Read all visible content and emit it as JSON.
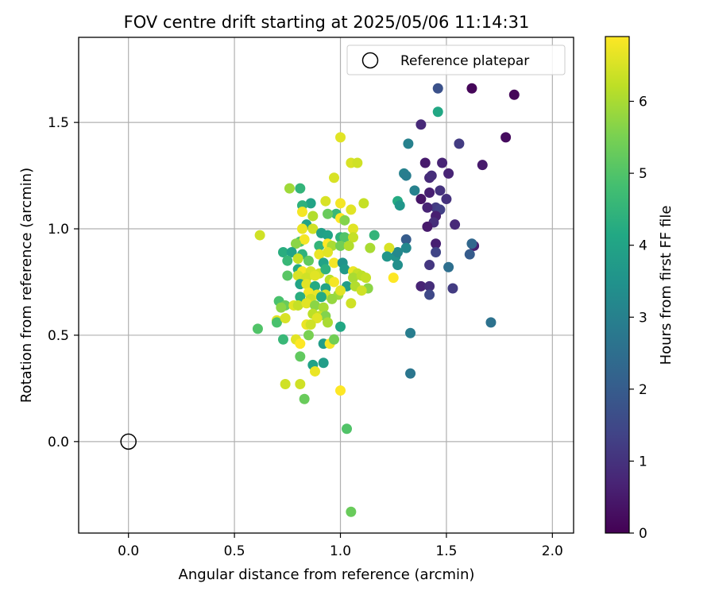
{
  "chart_data": {
    "type": "scatter",
    "title": "FOV centre drift starting at 2025/05/06 11:14:31",
    "xlabel": "Angular distance from reference (arcmin)",
    "ylabel": "Rotation from reference (arcmin)",
    "xlim": [
      -0.235,
      2.1
    ],
    "ylim": [
      -0.43,
      1.9
    ],
    "x_ticks": [
      0.0,
      0.5,
      1.0,
      1.5,
      2.0
    ],
    "x_tick_labels": [
      "0.0",
      "0.5",
      "1.0",
      "1.5",
      "2.0"
    ],
    "y_ticks": [
      0.0,
      0.5,
      1.0,
      1.5
    ],
    "y_tick_labels": [
      "0.0",
      "0.5",
      "1.0",
      "1.5"
    ],
    "grid": true,
    "legend": {
      "placement": "top-right",
      "entries": [
        "Reference platepar"
      ]
    },
    "colorbar": {
      "label": "Hours from first FF file",
      "colormap": "viridis",
      "range": [
        0,
        6.9
      ],
      "ticks": [
        0,
        1,
        2,
        3,
        4,
        5,
        6
      ],
      "tick_labels": [
        "0",
        "1",
        "2",
        "3",
        "4",
        "5",
        "6"
      ]
    },
    "reference_point": {
      "name": "Reference platepar",
      "x": 0.0,
      "y": 0.0
    },
    "series": [
      {
        "color_by": "hours",
        "points": [
          {
            "x": 1.62,
            "y": 1.66,
            "c": 0.1
          },
          {
            "x": 1.82,
            "y": 1.63,
            "c": 0.1
          },
          {
            "x": 1.78,
            "y": 1.43,
            "c": 0.2
          },
          {
            "x": 1.67,
            "y": 1.3,
            "c": 0.5
          },
          {
            "x": 1.48,
            "y": 1.31,
            "c": 0.7
          },
          {
            "x": 1.4,
            "y": 1.31,
            "c": 0.5
          },
          {
            "x": 1.51,
            "y": 1.26,
            "c": 0.7
          },
          {
            "x": 1.42,
            "y": 1.24,
            "c": 0.8
          },
          {
            "x": 1.43,
            "y": 1.25,
            "c": 0.9
          },
          {
            "x": 1.38,
            "y": 1.49,
            "c": 0.8
          },
          {
            "x": 1.56,
            "y": 1.4,
            "c": 1.2
          },
          {
            "x": 1.46,
            "y": 1.66,
            "c": 1.7
          },
          {
            "x": 1.42,
            "y": 1.17,
            "c": 0.6
          },
          {
            "x": 1.47,
            "y": 1.18,
            "c": 1.0
          },
          {
            "x": 1.38,
            "y": 1.14,
            "c": 0.4
          },
          {
            "x": 1.5,
            "y": 1.14,
            "c": 1.0
          },
          {
            "x": 1.45,
            "y": 1.1,
            "c": 1.2
          },
          {
            "x": 1.41,
            "y": 1.1,
            "c": 0.7
          },
          {
            "x": 1.47,
            "y": 1.09,
            "c": 1.3
          },
          {
            "x": 1.45,
            "y": 1.06,
            "c": 0.6
          },
          {
            "x": 1.44,
            "y": 1.03,
            "c": 0.9
          },
          {
            "x": 1.41,
            "y": 1.01,
            "c": 0.5
          },
          {
            "x": 1.54,
            "y": 1.02,
            "c": 0.8
          },
          {
            "x": 1.45,
            "y": 0.93,
            "c": 0.6
          },
          {
            "x": 1.45,
            "y": 0.89,
            "c": 1.4
          },
          {
            "x": 1.42,
            "y": 0.83,
            "c": 1.1
          },
          {
            "x": 1.63,
            "y": 0.92,
            "c": 0.6
          },
          {
            "x": 1.62,
            "y": 0.93,
            "c": 2.3
          },
          {
            "x": 1.61,
            "y": 0.88,
            "c": 2.0
          },
          {
            "x": 1.51,
            "y": 0.82,
            "c": 2.5
          },
          {
            "x": 1.38,
            "y": 0.73,
            "c": 0.7
          },
          {
            "x": 1.42,
            "y": 0.73,
            "c": 0.9
          },
          {
            "x": 1.42,
            "y": 0.69,
            "c": 1.5
          },
          {
            "x": 1.53,
            "y": 0.72,
            "c": 1.2
          },
          {
            "x": 1.71,
            "y": 0.56,
            "c": 2.6
          },
          {
            "x": 1.46,
            "y": 1.55,
            "c": 4.1
          },
          {
            "x": 1.32,
            "y": 1.4,
            "c": 3.0
          },
          {
            "x": 1.3,
            "y": 1.26,
            "c": 3.0
          },
          {
            "x": 1.31,
            "y": 1.25,
            "c": 2.9
          },
          {
            "x": 1.35,
            "y": 1.18,
            "c": 3.0
          },
          {
            "x": 1.27,
            "y": 1.13,
            "c": 4.2
          },
          {
            "x": 1.28,
            "y": 1.11,
            "c": 3.6
          },
          {
            "x": 1.31,
            "y": 0.95,
            "c": 2.0
          },
          {
            "x": 1.26,
            "y": 0.87,
            "c": 3.5
          },
          {
            "x": 1.27,
            "y": 0.89,
            "c": 3.2
          },
          {
            "x": 1.31,
            "y": 0.91,
            "c": 3.2
          },
          {
            "x": 1.27,
            "y": 0.83,
            "c": 3.4
          },
          {
            "x": 1.33,
            "y": 0.51,
            "c": 2.9
          },
          {
            "x": 1.33,
            "y": 0.32,
            "c": 2.7
          },
          {
            "x": 1.0,
            "y": 1.43,
            "c": 6.6
          },
          {
            "x": 1.05,
            "y": 1.31,
            "c": 6.5
          },
          {
            "x": 1.08,
            "y": 1.31,
            "c": 6.4
          },
          {
            "x": 0.97,
            "y": 1.24,
            "c": 6.5
          },
          {
            "x": 0.76,
            "y": 1.19,
            "c": 5.9
          },
          {
            "x": 0.81,
            "y": 1.19,
            "c": 4.5
          },
          {
            "x": 0.86,
            "y": 1.12,
            "c": 4.0
          },
          {
            "x": 0.82,
            "y": 1.11,
            "c": 4.4
          },
          {
            "x": 0.93,
            "y": 1.13,
            "c": 6.5
          },
          {
            "x": 1.0,
            "y": 1.12,
            "c": 6.8
          },
          {
            "x": 1.11,
            "y": 1.12,
            "c": 6.3
          },
          {
            "x": 1.05,
            "y": 1.09,
            "c": 6.6
          },
          {
            "x": 0.98,
            "y": 1.07,
            "c": 4.6
          },
          {
            "x": 0.94,
            "y": 1.07,
            "c": 5.3
          },
          {
            "x": 0.82,
            "y": 1.08,
            "c": 6.8
          },
          {
            "x": 0.87,
            "y": 1.06,
            "c": 6.1
          },
          {
            "x": 1.0,
            "y": 1.05,
            "c": 6.9
          },
          {
            "x": 1.02,
            "y": 1.04,
            "c": 5.6
          },
          {
            "x": 0.84,
            "y": 1.02,
            "c": 4.0
          },
          {
            "x": 0.82,
            "y": 1.0,
            "c": 6.7
          },
          {
            "x": 0.87,
            "y": 1.0,
            "c": 6.4
          },
          {
            "x": 1.06,
            "y": 1.0,
            "c": 6.6
          },
          {
            "x": 0.91,
            "y": 0.98,
            "c": 3.9
          },
          {
            "x": 0.94,
            "y": 0.97,
            "c": 4.0
          },
          {
            "x": 1.0,
            "y": 0.96,
            "c": 4.4
          },
          {
            "x": 1.02,
            "y": 0.96,
            "c": 5.0
          },
          {
            "x": 1.06,
            "y": 0.96,
            "c": 6.3
          },
          {
            "x": 1.16,
            "y": 0.97,
            "c": 4.5
          },
          {
            "x": 0.81,
            "y": 0.94,
            "c": 5.0
          },
          {
            "x": 0.83,
            "y": 0.95,
            "c": 6.8
          },
          {
            "x": 0.79,
            "y": 0.93,
            "c": 5.7
          },
          {
            "x": 0.9,
            "y": 0.92,
            "c": 4.5
          },
          {
            "x": 0.94,
            "y": 0.93,
            "c": 6.9
          },
          {
            "x": 0.96,
            "y": 0.92,
            "c": 6.0
          },
          {
            "x": 1.0,
            "y": 0.92,
            "c": 5.4
          },
          {
            "x": 1.04,
            "y": 0.92,
            "c": 6.1
          },
          {
            "x": 1.14,
            "y": 0.91,
            "c": 6.0
          },
          {
            "x": 1.23,
            "y": 0.91,
            "c": 6.5
          },
          {
            "x": 0.73,
            "y": 0.89,
            "c": 4.3
          },
          {
            "x": 0.77,
            "y": 0.89,
            "c": 4.0
          },
          {
            "x": 0.82,
            "y": 0.88,
            "c": 4.4
          },
          {
            "x": 0.9,
            "y": 0.88,
            "c": 6.7
          },
          {
            "x": 0.94,
            "y": 0.89,
            "c": 6.6
          },
          {
            "x": 0.75,
            "y": 0.85,
            "c": 4.6
          },
          {
            "x": 0.8,
            "y": 0.86,
            "c": 6.3
          },
          {
            "x": 0.85,
            "y": 0.85,
            "c": 5.2
          },
          {
            "x": 0.92,
            "y": 0.84,
            "c": 4.0
          },
          {
            "x": 0.97,
            "y": 0.84,
            "c": 6.8
          },
          {
            "x": 1.01,
            "y": 0.84,
            "c": 3.5
          },
          {
            "x": 1.22,
            "y": 0.87,
            "c": 3.6
          },
          {
            "x": 0.8,
            "y": 0.81,
            "c": 4.2
          },
          {
            "x": 0.82,
            "y": 0.8,
            "c": 6.8
          },
          {
            "x": 0.86,
            "y": 0.8,
            "c": 6.5
          },
          {
            "x": 0.9,
            "y": 0.79,
            "c": 6.4
          },
          {
            "x": 0.93,
            "y": 0.81,
            "c": 4.4
          },
          {
            "x": 1.02,
            "y": 0.81,
            "c": 3.7
          },
          {
            "x": 1.06,
            "y": 0.8,
            "c": 6.7
          },
          {
            "x": 1.08,
            "y": 0.79,
            "c": 6.3
          },
          {
            "x": 0.75,
            "y": 0.78,
            "c": 5.1
          },
          {
            "x": 0.8,
            "y": 0.78,
            "c": 6.5
          },
          {
            "x": 0.84,
            "y": 0.77,
            "c": 6.4
          },
          {
            "x": 0.88,
            "y": 0.78,
            "c": 6.6
          },
          {
            "x": 0.95,
            "y": 0.76,
            "c": 6.2
          },
          {
            "x": 0.97,
            "y": 0.75,
            "c": 6.8
          },
          {
            "x": 1.06,
            "y": 0.77,
            "c": 6.0
          },
          {
            "x": 1.1,
            "y": 0.78,
            "c": 6.2
          },
          {
            "x": 1.12,
            "y": 0.77,
            "c": 6.3
          },
          {
            "x": 1.25,
            "y": 0.77,
            "c": 6.9
          },
          {
            "x": 0.81,
            "y": 0.74,
            "c": 4.0
          },
          {
            "x": 0.84,
            "y": 0.74,
            "c": 6.6
          },
          {
            "x": 0.88,
            "y": 0.73,
            "c": 4.2
          },
          {
            "x": 0.93,
            "y": 0.72,
            "c": 4.0
          },
          {
            "x": 1.03,
            "y": 0.73,
            "c": 3.8
          },
          {
            "x": 1.07,
            "y": 0.73,
            "c": 6.1
          },
          {
            "x": 1.13,
            "y": 0.72,
            "c": 5.7
          },
          {
            "x": 1.1,
            "y": 0.71,
            "c": 6.4
          },
          {
            "x": 0.85,
            "y": 0.7,
            "c": 6.8
          },
          {
            "x": 0.89,
            "y": 0.69,
            "c": 6.7
          },
          {
            "x": 0.93,
            "y": 0.69,
            "c": 6.5
          },
          {
            "x": 0.99,
            "y": 0.69,
            "c": 5.9
          },
          {
            "x": 1.0,
            "y": 0.71,
            "c": 6.6
          },
          {
            "x": 0.81,
            "y": 0.68,
            "c": 4.3
          },
          {
            "x": 0.86,
            "y": 0.67,
            "c": 6.4
          },
          {
            "x": 0.91,
            "y": 0.68,
            "c": 4.2
          },
          {
            "x": 0.96,
            "y": 0.67,
            "c": 5.8
          },
          {
            "x": 0.71,
            "y": 0.66,
            "c": 4.9
          },
          {
            "x": 0.74,
            "y": 0.64,
            "c": 5.3
          },
          {
            "x": 0.78,
            "y": 0.64,
            "c": 6.6
          },
          {
            "x": 0.8,
            "y": 0.64,
            "c": 6.3
          },
          {
            "x": 0.84,
            "y": 0.65,
            "c": 6.6
          },
          {
            "x": 0.88,
            "y": 0.64,
            "c": 5.7
          },
          {
            "x": 0.92,
            "y": 0.63,
            "c": 6.0
          },
          {
            "x": 1.05,
            "y": 0.65,
            "c": 6.4
          },
          {
            "x": 0.72,
            "y": 0.63,
            "c": 5.7
          },
          {
            "x": 0.87,
            "y": 0.6,
            "c": 6.2
          },
          {
            "x": 0.9,
            "y": 0.59,
            "c": 6.3
          },
          {
            "x": 0.93,
            "y": 0.59,
            "c": 5.6
          },
          {
            "x": 0.7,
            "y": 0.57,
            "c": 6.6
          },
          {
            "x": 0.7,
            "y": 0.56,
            "c": 4.9
          },
          {
            "x": 0.74,
            "y": 0.58,
            "c": 6.5
          },
          {
            "x": 0.89,
            "y": 0.58,
            "c": 6.6
          },
          {
            "x": 0.94,
            "y": 0.56,
            "c": 6.0
          },
          {
            "x": 0.84,
            "y": 0.55,
            "c": 6.7
          },
          {
            "x": 0.86,
            "y": 0.55,
            "c": 6.4
          },
          {
            "x": 1.0,
            "y": 0.54,
            "c": 4.1
          },
          {
            "x": 0.61,
            "y": 0.53,
            "c": 5.0
          },
          {
            "x": 0.85,
            "y": 0.5,
            "c": 5.5
          },
          {
            "x": 0.73,
            "y": 0.48,
            "c": 4.6
          },
          {
            "x": 0.79,
            "y": 0.48,
            "c": 6.6
          },
          {
            "x": 0.81,
            "y": 0.46,
            "c": 6.9
          },
          {
            "x": 0.92,
            "y": 0.46,
            "c": 3.8
          },
          {
            "x": 0.95,
            "y": 0.46,
            "c": 6.8
          },
          {
            "x": 0.97,
            "y": 0.48,
            "c": 5.4
          },
          {
            "x": 0.81,
            "y": 0.4,
            "c": 5.2
          },
          {
            "x": 0.87,
            "y": 0.36,
            "c": 4.0
          },
          {
            "x": 0.92,
            "y": 0.37,
            "c": 3.8
          },
          {
            "x": 0.88,
            "y": 0.33,
            "c": 6.7
          },
          {
            "x": 0.74,
            "y": 0.27,
            "c": 6.4
          },
          {
            "x": 0.81,
            "y": 0.27,
            "c": 6.4
          },
          {
            "x": 1.0,
            "y": 0.24,
            "c": 6.9
          },
          {
            "x": 0.83,
            "y": 0.2,
            "c": 5.3
          },
          {
            "x": 0.62,
            "y": 0.97,
            "c": 6.4
          },
          {
            "x": 1.03,
            "y": 0.06,
            "c": 5.0
          },
          {
            "x": 1.05,
            "y": -0.33,
            "c": 5.3
          }
        ]
      }
    ]
  }
}
